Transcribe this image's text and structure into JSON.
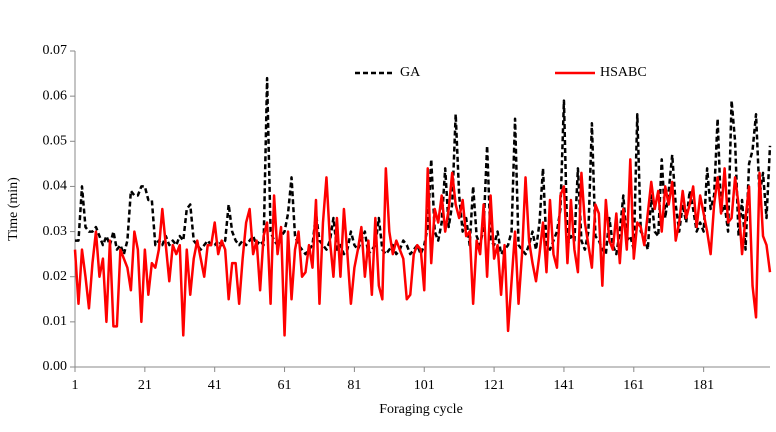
{
  "chart_data": {
    "type": "line",
    "x_label": "Foraging cycle",
    "y_label": "Time (min)",
    "x": [
      1,
      2,
      3,
      4,
      5,
      6,
      7,
      8,
      9,
      10,
      11,
      12,
      13,
      14,
      15,
      16,
      17,
      18,
      19,
      20,
      21,
      22,
      23,
      24,
      25,
      26,
      27,
      28,
      29,
      30,
      31,
      32,
      33,
      34,
      35,
      36,
      37,
      38,
      39,
      40,
      41,
      42,
      43,
      44,
      45,
      46,
      47,
      48,
      49,
      50,
      51,
      52,
      53,
      54,
      55,
      56,
      57,
      58,
      59,
      60,
      61,
      62,
      63,
      64,
      65,
      66,
      67,
      68,
      69,
      70,
      71,
      72,
      73,
      74,
      75,
      76,
      77,
      78,
      79,
      80,
      81,
      82,
      83,
      84,
      85,
      86,
      87,
      88,
      89,
      90,
      91,
      92,
      93,
      94,
      95,
      96,
      97,
      98,
      99,
      100,
      101,
      102,
      103,
      104,
      105,
      106,
      107,
      108,
      109,
      110,
      111,
      112,
      113,
      114,
      115,
      116,
      117,
      118,
      119,
      120,
      121,
      122,
      123,
      124,
      125,
      126,
      127,
      128,
      129,
      130,
      131,
      132,
      133,
      134,
      135,
      136,
      137,
      138,
      139,
      140,
      141,
      142,
      143,
      144,
      145,
      146,
      147,
      148,
      149,
      150,
      151,
      152,
      153,
      154,
      155,
      156,
      157,
      158,
      159,
      160,
      161,
      162,
      163,
      164,
      165,
      166,
      167,
      168,
      169,
      170,
      171,
      172,
      173,
      174,
      175,
      176,
      177,
      178,
      179,
      180,
      181,
      182,
      183,
      184,
      185,
      186,
      187,
      188,
      189,
      190,
      191,
      192,
      193,
      194,
      195,
      196,
      197,
      198,
      199,
      200
    ],
    "series": [
      {
        "name": "GA",
        "color": "#000000",
        "dashed": true,
        "values": [
          0.028,
          0.028,
          0.04,
          0.031,
          0.03,
          0.03,
          0.031,
          0.029,
          0.027,
          0.029,
          0.027,
          0.03,
          0.026,
          0.027,
          0.025,
          0.028,
          0.039,
          0.038,
          0.038,
          0.04,
          0.04,
          0.037,
          0.037,
          0.027,
          0.028,
          0.027,
          0.029,
          0.027,
          0.028,
          0.027,
          0.029,
          0.028,
          0.035,
          0.036,
          0.028,
          0.027,
          0.026,
          0.027,
          0.028,
          0.027,
          0.027,
          0.028,
          0.027,
          0.028,
          0.036,
          0.03,
          0.028,
          0.027,
          0.028,
          0.027,
          0.028,
          0.029,
          0.027,
          0.028,
          0.027,
          0.064,
          0.03,
          0.028,
          0.027,
          0.029,
          0.03,
          0.034,
          0.042,
          0.029,
          0.027,
          0.026,
          0.025,
          0.026,
          0.027,
          0.034,
          0.028,
          0.027,
          0.026,
          0.028,
          0.033,
          0.026,
          0.027,
          0.025,
          0.026,
          0.03,
          0.027,
          0.026,
          0.028,
          0.03,
          0.025,
          0.026,
          0.027,
          0.033,
          0.026,
          0.025,
          0.026,
          0.027,
          0.025,
          0.026,
          0.028,
          0.027,
          0.025,
          0.026,
          0.027,
          0.025,
          0.027,
          0.031,
          0.046,
          0.03,
          0.028,
          0.032,
          0.044,
          0.031,
          0.036,
          0.056,
          0.038,
          0.03,
          0.033,
          0.027,
          0.04,
          0.029,
          0.027,
          0.031,
          0.049,
          0.028,
          0.027,
          0.03,
          0.025,
          0.026,
          0.027,
          0.03,
          0.055,
          0.027,
          0.026,
          0.025,
          0.027,
          0.03,
          0.026,
          0.032,
          0.044,
          0.027,
          0.026,
          0.028,
          0.03,
          0.035,
          0.059,
          0.027,
          0.029,
          0.028,
          0.044,
          0.028,
          0.026,
          0.03,
          0.054,
          0.029,
          0.028,
          0.026,
          0.025,
          0.033,
          0.027,
          0.025,
          0.03,
          0.038,
          0.028,
          0.029,
          0.026,
          0.056,
          0.03,
          0.029,
          0.026,
          0.038,
          0.03,
          0.029,
          0.046,
          0.033,
          0.039,
          0.047,
          0.036,
          0.03,
          0.036,
          0.032,
          0.039,
          0.035,
          0.03,
          0.032,
          0.03,
          0.044,
          0.035,
          0.038,
          0.055,
          0.034,
          0.036,
          0.03,
          0.059,
          0.05,
          0.029,
          0.037,
          0.026,
          0.045,
          0.048,
          0.056,
          0.038,
          0.043,
          0.033,
          0.049
        ]
      },
      {
        "name": "HSABC",
        "color": "#ff0000",
        "dashed": false,
        "values": [
          0.026,
          0.014,
          0.026,
          0.02,
          0.013,
          0.023,
          0.03,
          0.02,
          0.024,
          0.01,
          0.028,
          0.009,
          0.009,
          0.026,
          0.024,
          0.022,
          0.017,
          0.03,
          0.026,
          0.01,
          0.026,
          0.016,
          0.023,
          0.022,
          0.026,
          0.035,
          0.027,
          0.019,
          0.027,
          0.025,
          0.027,
          0.007,
          0.026,
          0.016,
          0.024,
          0.028,
          0.024,
          0.02,
          0.027,
          0.027,
          0.032,
          0.025,
          0.028,
          0.026,
          0.015,
          0.023,
          0.023,
          0.014,
          0.024,
          0.032,
          0.035,
          0.025,
          0.028,
          0.017,
          0.029,
          0.032,
          0.014,
          0.038,
          0.025,
          0.031,
          0.007,
          0.03,
          0.015,
          0.026,
          0.03,
          0.02,
          0.021,
          0.027,
          0.022,
          0.037,
          0.014,
          0.032,
          0.042,
          0.028,
          0.02,
          0.033,
          0.02,
          0.035,
          0.025,
          0.014,
          0.022,
          0.026,
          0.031,
          0.02,
          0.028,
          0.016,
          0.033,
          0.018,
          0.015,
          0.044,
          0.03,
          0.025,
          0.028,
          0.026,
          0.024,
          0.015,
          0.016,
          0.025,
          0.027,
          0.026,
          0.017,
          0.044,
          0.023,
          0.035,
          0.032,
          0.038,
          0.03,
          0.035,
          0.043,
          0.036,
          0.033,
          0.037,
          0.029,
          0.03,
          0.014,
          0.028,
          0.025,
          0.036,
          0.02,
          0.038,
          0.024,
          0.027,
          0.016,
          0.027,
          0.008,
          0.019,
          0.03,
          0.014,
          0.025,
          0.042,
          0.028,
          0.023,
          0.019,
          0.025,
          0.032,
          0.021,
          0.037,
          0.025,
          0.022,
          0.038,
          0.04,
          0.023,
          0.037,
          0.026,
          0.021,
          0.043,
          0.032,
          0.027,
          0.022,
          0.036,
          0.034,
          0.018,
          0.037,
          0.028,
          0.026,
          0.034,
          0.023,
          0.035,
          0.026,
          0.046,
          0.024,
          0.032,
          0.031,
          0.027,
          0.034,
          0.041,
          0.035,
          0.039,
          0.03,
          0.04,
          0.036,
          0.041,
          0.028,
          0.032,
          0.039,
          0.033,
          0.036,
          0.04,
          0.031,
          0.038,
          0.034,
          0.03,
          0.025,
          0.036,
          0.042,
          0.034,
          0.044,
          0.032,
          0.033,
          0.042,
          0.036,
          0.025,
          0.033,
          0.04,
          0.018,
          0.011,
          0.043,
          0.029,
          0.027,
          0.021
        ]
      }
    ],
    "xlim": [
      1,
      200
    ],
    "xticks": [
      1,
      21,
      41,
      61,
      81,
      101,
      121,
      141,
      161,
      181
    ],
    "ylim": [
      0,
      0.07
    ],
    "yticks": [
      {
        "value": 0,
        "label": "0.00"
      },
      0.01,
      0.02,
      0.03,
      0.04,
      0.05,
      0.06,
      0.07
    ],
    "grid": false,
    "legend": "top"
  }
}
